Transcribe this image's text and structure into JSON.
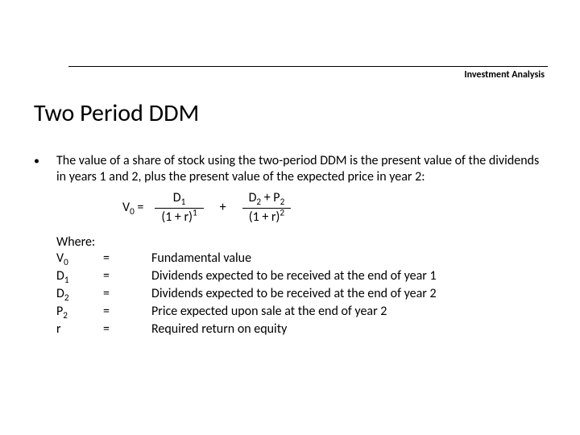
{
  "header": {
    "label": "Investment Analysis"
  },
  "title": "Two Period DDM",
  "bullet": {
    "text": "The value of a share of stock using the two-period DDM is the present value of the dividends in years 1 and 2, plus the present value of the expected price in year 2:"
  },
  "formula": {
    "lhs_var": "V",
    "lhs_sub": "0",
    "lhs_eq": " =",
    "term1_num_a": "D",
    "term1_num_a_sub": "1",
    "term1_den": "(1 + r)",
    "term1_den_sup": "1",
    "plus": "+",
    "term2_num_a": "D",
    "term2_num_a_sub": "2",
    "term2_num_plus": " + P",
    "term2_num_b_sub": "2",
    "term2_den": "(1 + r)",
    "term2_den_sup": "2"
  },
  "where_label": "Where:",
  "defs": [
    {
      "sym": "V",
      "sub": "0",
      "eq": "=",
      "desc": "Fundamental value"
    },
    {
      "sym": "D",
      "sub": "1",
      "eq": "=",
      "desc": "Dividends expected to be received at the end of year 1"
    },
    {
      "sym": "D",
      "sub": "2",
      "eq": "=",
      "desc": "Dividends expected to be received at the end of year 2"
    },
    {
      "sym": "P",
      "sub": "2",
      "eq": "=",
      "desc": "Price expected upon sale at the end of year 2"
    },
    {
      "sym": "r",
      "sub": "",
      "eq": "=",
      "desc": "Required return on equity"
    }
  ],
  "colors": {
    "background": "#ffffff",
    "text": "#000000",
    "rule": "#000000"
  }
}
